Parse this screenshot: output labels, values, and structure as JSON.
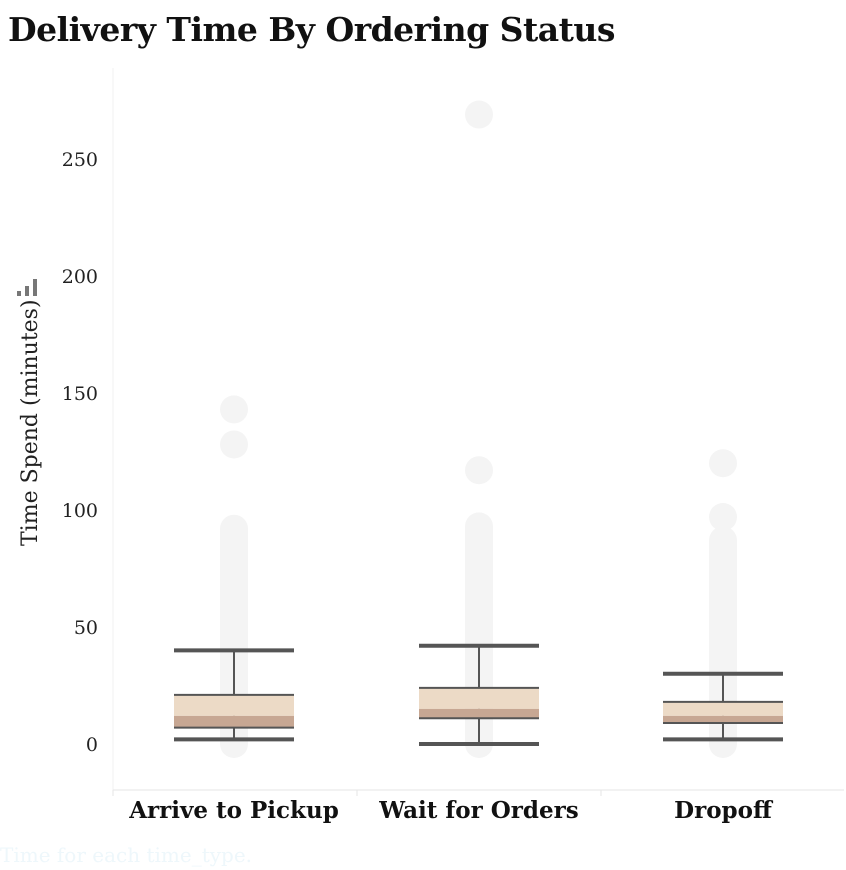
{
  "chart_data": {
    "type": "box",
    "title": "Delivery Time By Ordering Status",
    "ylabel": "Time Spend (minutes)",
    "xlabel": "",
    "ylim": [
      -18,
      290
    ],
    "yticks": [
      0,
      50,
      100,
      150,
      200,
      250
    ],
    "categories": [
      "Arrive to Pickup",
      "Wait for Orders",
      "Dropoff"
    ],
    "boxes": [
      {
        "category": "Arrive to Pickup",
        "whisker_low": 2,
        "q1": 7,
        "median": 12,
        "q3": 21,
        "whisker_high": 40,
        "points_range": [
          0,
          92
        ],
        "outliers": [
          128,
          143
        ]
      },
      {
        "category": "Wait for Orders",
        "whisker_low": 0,
        "q1": 11,
        "median": 15,
        "q3": 24,
        "whisker_high": 42,
        "points_range": [
          0,
          93
        ],
        "outliers": [
          117,
          269
        ]
      },
      {
        "category": "Dropoff",
        "whisker_low": 2,
        "q1": 9,
        "median": 12,
        "q3": 18,
        "whisker_high": 30,
        "points_range": [
          0,
          87
        ],
        "outliers": [
          97,
          120
        ]
      }
    ],
    "colors": {
      "points": "#f4f4f4",
      "box_upper": "#ecdac6",
      "box_lower": "#c7a793",
      "whisker": "#555555",
      "grid": "#f0f0f0"
    },
    "grid": false
  },
  "caption": "Time for each time_type."
}
